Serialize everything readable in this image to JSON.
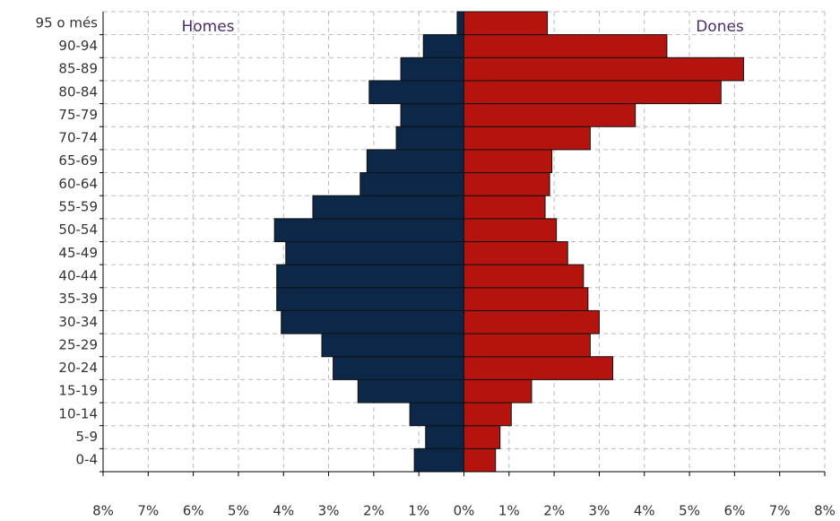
{
  "chart_data": {
    "type": "pyramid",
    "categories": [
      "0-4",
      "5-9",
      "10-14",
      "15-19",
      "20-24",
      "25-29",
      "30-34",
      "35-39",
      "40-44",
      "45-49",
      "50-54",
      "55-59",
      "60-64",
      "65-69",
      "70-74",
      "75-79",
      "80-84",
      "85-89",
      "90-94",
      "95 o més"
    ],
    "series": [
      {
        "name": "Homes",
        "color": "#0c2747",
        "values": [
          -1.1,
          -0.85,
          -1.2,
          -2.35,
          -2.9,
          -3.15,
          -4.05,
          -4.15,
          -4.15,
          -3.95,
          -4.2,
          -3.35,
          -2.3,
          -2.15,
          -1.5,
          -1.4,
          -2.1,
          -1.4,
          -0.9,
          -0.15
        ]
      },
      {
        "name": "Dones",
        "color": "#b5140e",
        "values": [
          0.7,
          0.8,
          1.05,
          1.5,
          3.3,
          2.8,
          3.0,
          2.75,
          2.65,
          2.3,
          2.05,
          1.8,
          1.9,
          1.95,
          2.8,
          3.8,
          5.7,
          6.2,
          4.5,
          1.85
        ]
      }
    ],
    "xlim": [
      -8,
      8
    ],
    "xticks": [
      {
        "value": -8,
        "label": "8%"
      },
      {
        "value": -7,
        "label": "7%"
      },
      {
        "value": -6,
        "label": "6%"
      },
      {
        "value": -5,
        "label": "5%"
      },
      {
        "value": -4,
        "label": "4%"
      },
      {
        "value": -3,
        "label": "3%"
      },
      {
        "value": -2,
        "label": "2%"
      },
      {
        "value": -1,
        "label": "1%"
      },
      {
        "value": 0,
        "label": "0%"
      },
      {
        "value": 1,
        "label": "1%"
      },
      {
        "value": 2,
        "label": "2%"
      },
      {
        "value": 3,
        "label": "3%"
      },
      {
        "value": 4,
        "label": "4%"
      },
      {
        "value": 5,
        "label": "5%"
      },
      {
        "value": 6,
        "label": "6%"
      },
      {
        "value": 7,
        "label": "7%"
      },
      {
        "value": 8,
        "label": "8%"
      }
    ],
    "grid": true
  }
}
